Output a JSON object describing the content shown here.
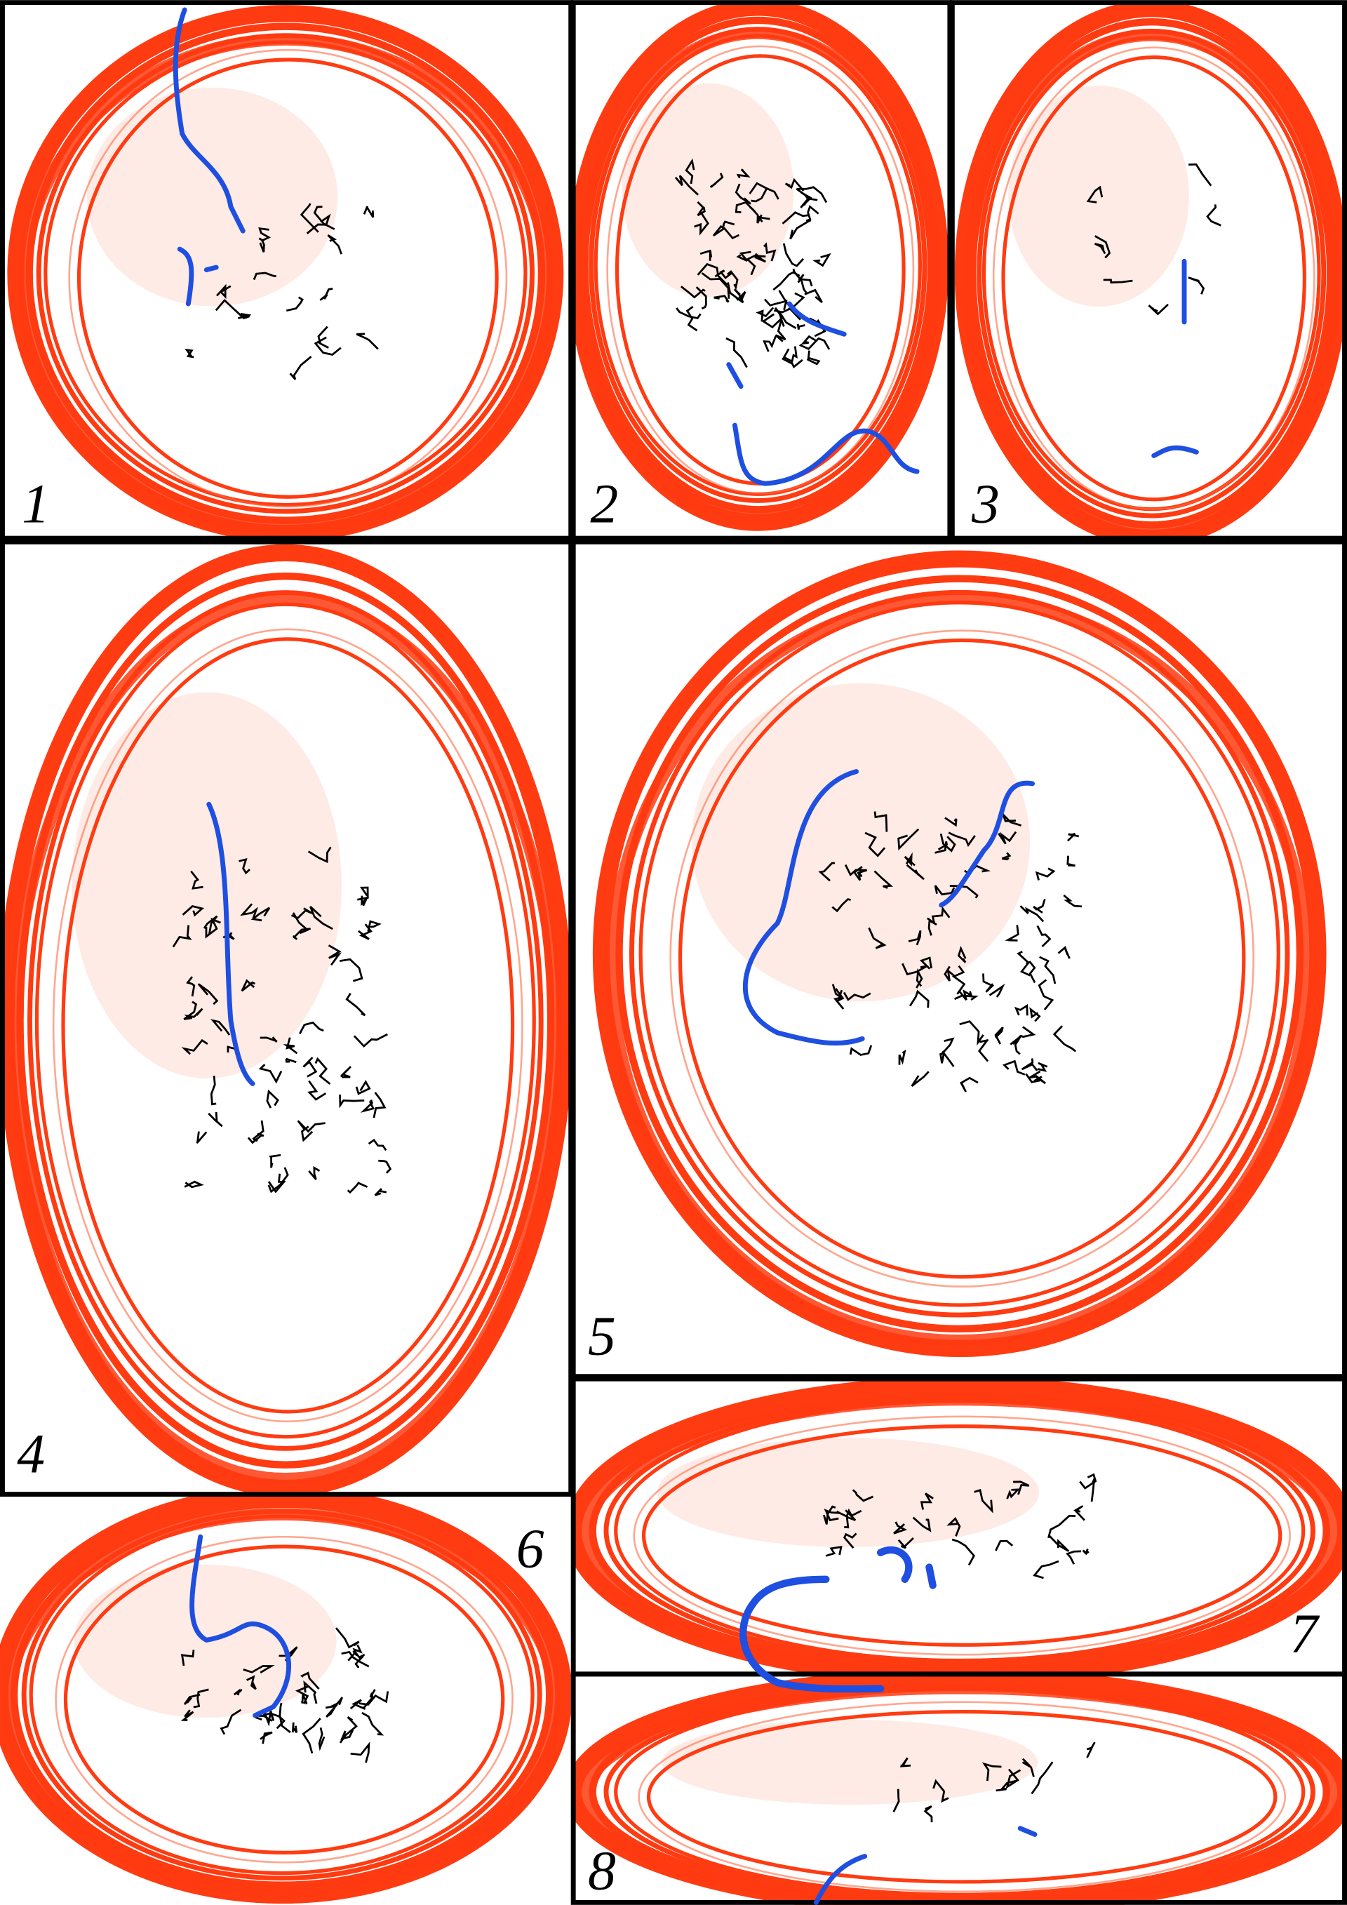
{
  "panels": [
    {
      "label": "1"
    },
    {
      "label": "2"
    },
    {
      "label": "3"
    },
    {
      "label": "4"
    },
    {
      "label": "5"
    },
    {
      "label": "6"
    },
    {
      "label": "7"
    },
    {
      "label": "8"
    }
  ]
}
